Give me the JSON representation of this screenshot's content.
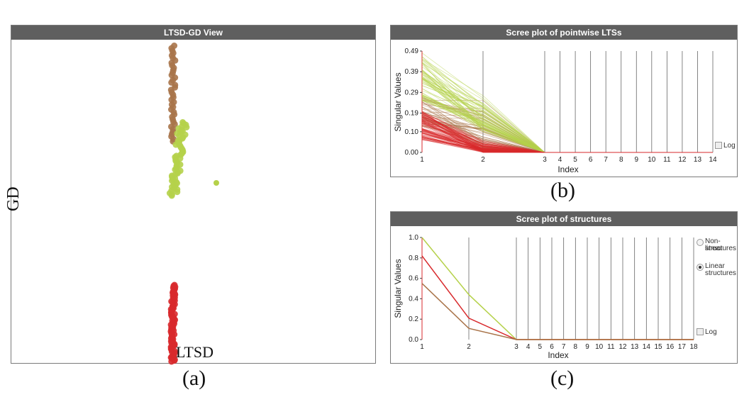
{
  "panel_a": {
    "title": "LTSD-GD View",
    "x_axis_label": "LTSD",
    "y_axis_label": "GD",
    "caption": "(a)",
    "colors": {
      "brown": "#a9744a",
      "green": "#b5d14a",
      "red": "#d8292c"
    }
  },
  "panel_b": {
    "title": "Scree plot of pointwise LTSs",
    "caption": "(b)",
    "log_label": "Log"
  },
  "panel_c": {
    "title": "Scree plot of structures",
    "caption": "(c)",
    "log_label": "Log",
    "radio_nonlinear_line1": "Non-linear",
    "radio_nonlinear_line2": "structures",
    "radio_linear_line1": "Linear",
    "radio_linear_line2": "structures",
    "selected": "Linear structures"
  },
  "chart_data": [
    {
      "type": "scatter",
      "title": "LTSD-GD View",
      "xlabel": "LTSD",
      "ylabel": "GD",
      "series": [
        {
          "color": "#a9744a",
          "cluster_x_center": 0.5,
          "gd_range": [
            0.69,
            0.99
          ],
          "count": 40
        },
        {
          "color": "#b5d14a",
          "cluster_x_center": 0.5,
          "gd_range": [
            0.52,
            0.75
          ],
          "count": 60,
          "outlier": {
            "x": 0.62,
            "gd": 0.56
          }
        },
        {
          "color": "#d8292c",
          "cluster_x_center": 0.5,
          "gd_range": [
            0.0,
            0.24
          ],
          "count": 80
        }
      ]
    },
    {
      "type": "line",
      "title": "Scree plot of pointwise LTSs",
      "xlabel": "Index",
      "ylabel": "Singular Values",
      "x": [
        1,
        2,
        3,
        4,
        5,
        6,
        7,
        8,
        9,
        10,
        11,
        12,
        13,
        14
      ],
      "ylim": [
        0,
        0.49
      ],
      "yticks": [
        0.0,
        0.1,
        0.19,
        0.29,
        0.39,
        0.49
      ],
      "series_groups": [
        {
          "color": "#b5d14a",
          "v1_range": [
            0.25,
            0.49
          ],
          "v2_range": [
            0.1,
            0.29
          ],
          "v3": 0.0
        },
        {
          "color": "#a9744a",
          "v1_range": [
            0.12,
            0.27
          ],
          "v2_range": [
            0.02,
            0.28
          ],
          "v3": 0.0
        },
        {
          "color": "#d8292c",
          "v1_range": [
            0.06,
            0.2
          ],
          "v2_range": [
            0.0,
            0.06
          ],
          "v3": 0.0
        }
      ]
    },
    {
      "type": "line",
      "title": "Scree plot of structures",
      "xlabel": "Index",
      "ylabel": "Singular Values",
      "x": [
        1,
        2,
        3,
        4,
        5,
        6,
        7,
        8,
        9,
        10,
        11,
        12,
        13,
        14,
        15,
        16,
        17,
        18
      ],
      "ylim": [
        0,
        1.0
      ],
      "yticks": [
        0.0,
        0.2,
        0.4,
        0.6,
        0.8,
        1.0
      ],
      "series": [
        {
          "color": "#b5d14a",
          "values": [
            1.0,
            0.44,
            0,
            0,
            0,
            0,
            0,
            0,
            0,
            0,
            0,
            0,
            0,
            0,
            0,
            0,
            0,
            0
          ]
        },
        {
          "color": "#d8292c",
          "values": [
            0.82,
            0.21,
            0,
            0,
            0,
            0,
            0,
            0,
            0,
            0,
            0,
            0,
            0,
            0,
            0,
            0,
            0,
            0
          ]
        },
        {
          "color": "#a9744a",
          "values": [
            0.55,
            0.11,
            0,
            0,
            0,
            0,
            0,
            0,
            0,
            0,
            0,
            0,
            0,
            0,
            0,
            0,
            0,
            0
          ]
        }
      ]
    }
  ]
}
